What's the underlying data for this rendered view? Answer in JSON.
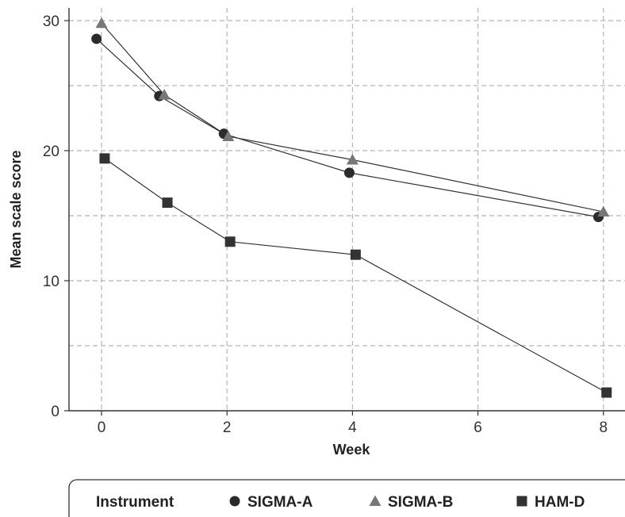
{
  "chart_data": {
    "type": "line",
    "title": "",
    "xlabel": "Week",
    "ylabel": "Mean scale score",
    "xlim": [
      -0.5,
      8.35
    ],
    "ylim": [
      0,
      30
    ],
    "xticks": [
      0,
      2,
      4,
      6,
      8
    ],
    "yticks": [
      0,
      10,
      20,
      30
    ],
    "grid": true,
    "legend": {
      "placement": "bottom",
      "title": "Instrument"
    },
    "series": [
      {
        "name": "SIGMA-A",
        "marker": "circle",
        "color": "#2b2b2b",
        "points": [
          [
            -0.08,
            28.6
          ],
          [
            0.92,
            24.2
          ],
          [
            1.95,
            21.3
          ],
          [
            3.95,
            18.3
          ],
          [
            7.92,
            14.9
          ]
        ]
      },
      {
        "name": "SIGMA-B",
        "marker": "triangle",
        "color": "#777777",
        "points": [
          [
            0.0,
            29.8
          ],
          [
            1.0,
            24.3
          ],
          [
            2.02,
            21.1
          ],
          [
            4.0,
            19.3
          ],
          [
            8.0,
            15.3
          ]
        ]
      },
      {
        "name": "HAM-D",
        "marker": "square",
        "color": "#333333",
        "points": [
          [
            0.05,
            19.4
          ],
          [
            1.05,
            16.0
          ],
          [
            2.05,
            13.0
          ],
          [
            4.05,
            12.0
          ],
          [
            8.05,
            1.4
          ]
        ]
      }
    ]
  }
}
